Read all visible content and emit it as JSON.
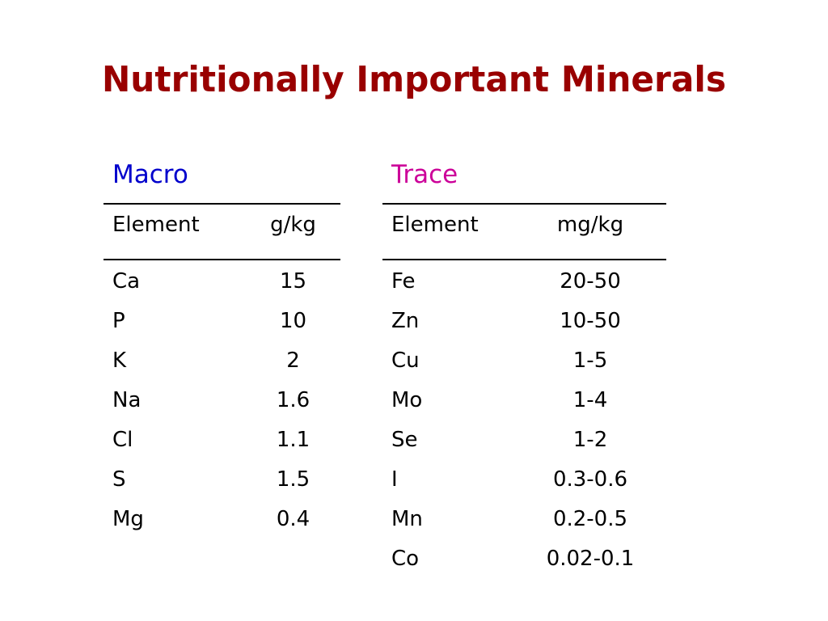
{
  "slide": {
    "title": "Nutritionally Important Minerals",
    "colors": {
      "title": "#990000",
      "macro_heading": "#0000cc",
      "trace_heading": "#cc0099",
      "text": "#000000"
    }
  },
  "macro": {
    "heading": "Macro",
    "headers": {
      "element": "Element",
      "amount": "g/kg"
    },
    "rows": [
      {
        "element": "Ca",
        "amount": "15"
      },
      {
        "element": "P",
        "amount": "10"
      },
      {
        "element": "K",
        "amount": "2"
      },
      {
        "element": "Na",
        "amount": "1.6"
      },
      {
        "element": "Cl",
        "amount": "1.1"
      },
      {
        "element": "S",
        "amount": "1.5"
      },
      {
        "element": "Mg",
        "amount": "0.4"
      }
    ]
  },
  "trace": {
    "heading": "Trace",
    "headers": {
      "element": "Element",
      "amount": "mg/kg"
    },
    "rows": [
      {
        "element": "Fe",
        "amount": "20-50"
      },
      {
        "element": "Zn",
        "amount": "10-50"
      },
      {
        "element": "Cu",
        "amount": "1-5"
      },
      {
        "element": "Mo",
        "amount": "1-4"
      },
      {
        "element": "Se",
        "amount": "1-2"
      },
      {
        "element": "I",
        "amount": "0.3-0.6"
      },
      {
        "element": "Mn",
        "amount": "0.2-0.5"
      },
      {
        "element": "Co",
        "amount": "0.02-0.1"
      }
    ]
  }
}
